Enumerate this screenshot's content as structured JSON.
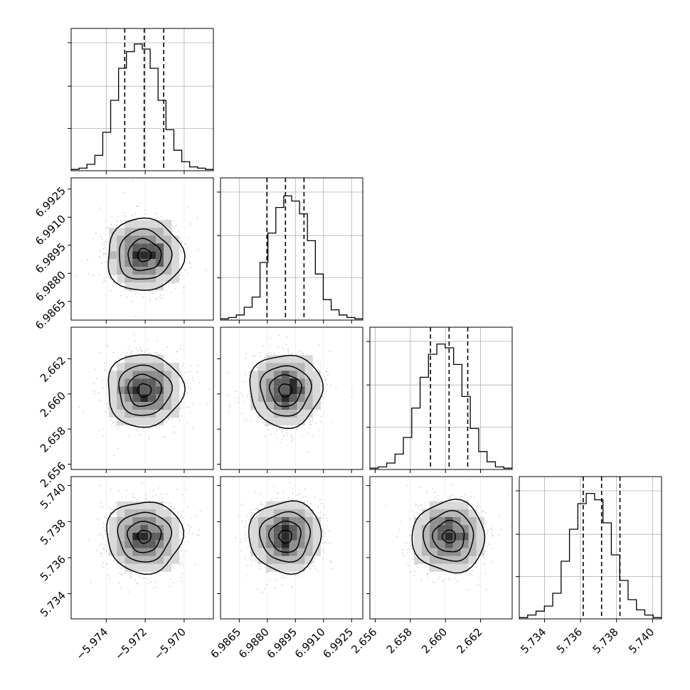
{
  "chart_data": {
    "type": "corner",
    "grid": true,
    "parameters": [
      {
        "name": "param_0",
        "range": [
          -5.9758,
          -5.9685
        ],
        "quantiles": [
          -5.97305,
          -5.97205,
          -5.97105
        ],
        "ticks": [
          -5.974,
          -5.972,
          -5.97
        ],
        "tick_labels": [
          "−5.974",
          "−5.972",
          "−5.970"
        ],
        "hist": [
          0.01,
          0.02,
          0.05,
          0.12,
          0.3,
          0.55,
          0.8,
          0.93,
          0.99,
          0.95,
          0.8,
          0.55,
          0.32,
          0.16,
          0.07,
          0.03,
          0.02,
          0.01
        ]
      },
      {
        "name": "param_1",
        "range": [
          6.9855,
          6.9931
        ],
        "quantiles": [
          6.98798,
          6.98897,
          6.98996
        ],
        "ticks": [
          6.9865,
          6.988,
          6.9895,
          6.991,
          6.9925
        ],
        "tick_labels": [
          "6.9865",
          "6.9880",
          "6.9895",
          "6.9910",
          "6.9925"
        ],
        "hist": [
          0.01,
          0.02,
          0.04,
          0.1,
          0.18,
          0.45,
          0.68,
          0.88,
          0.97,
          0.93,
          0.83,
          0.62,
          0.36,
          0.16,
          0.08,
          0.04,
          0.02,
          0.01
        ]
      },
      {
        "name": "param_2",
        "range": [
          2.6557,
          2.6638
        ],
        "quantiles": [
          2.65915,
          2.66021,
          2.66127
        ],
        "ticks": [
          2.656,
          2.658,
          2.66,
          2.662
        ],
        "tick_labels": [
          "2.656",
          "2.658",
          "2.660",
          "2.662"
        ],
        "hist": [
          0.01,
          0.02,
          0.05,
          0.12,
          0.25,
          0.48,
          0.72,
          0.9,
          0.98,
          0.95,
          0.82,
          0.57,
          0.32,
          0.14,
          0.06,
          0.02,
          0.01
        ]
      },
      {
        "name": "param_3",
        "range": [
          5.7326,
          5.7405
        ],
        "quantiles": [
          5.73615,
          5.73717,
          5.73819
        ],
        "ticks": [
          5.734,
          5.736,
          5.738,
          5.74
        ],
        "tick_labels": [
          "5.734",
          "5.736",
          "5.738",
          "5.740"
        ],
        "hist": [
          0.01,
          0.03,
          0.06,
          0.1,
          0.2,
          0.45,
          0.7,
          0.9,
          0.98,
          0.93,
          0.75,
          0.5,
          0.3,
          0.15,
          0.07,
          0.03,
          0.01
        ]
      }
    ],
    "hist_yticks": [
      0.33,
      0.66,
      1.0
    ],
    "contour_levels": [
      0.118,
      0.393,
      0.675,
      0.865
    ]
  }
}
